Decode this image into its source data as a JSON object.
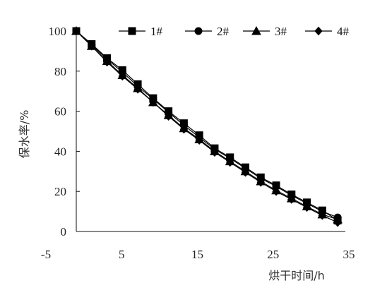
{
  "chart_data": {
    "type": "line",
    "title": "",
    "xlabel": "烘干时间/h",
    "ylabel": "保水率/%",
    "xlim": [
      -5,
      35
    ],
    "ylim": [
      0,
      100
    ],
    "x_ticks": [
      "-5",
      "5",
      "15",
      "25",
      "35"
    ],
    "y_ticks": [
      "0",
      "20",
      "40",
      "60",
      "80",
      "100"
    ],
    "grid": false,
    "legend_position": "top-right",
    "x": [
      0,
      2,
      4,
      6,
      8,
      10,
      12,
      14,
      16,
      18,
      20,
      22,
      24,
      26,
      28,
      30,
      32,
      34
    ],
    "series": [
      {
        "name": "1#",
        "marker": "square",
        "values": [
          100,
          93.5,
          86.5,
          80.5,
          73.5,
          66.5,
          60,
          54,
          48,
          41.5,
          37,
          32,
          27,
          23,
          18.5,
          14.5,
          10.5,
          5.5
        ]
      },
      {
        "name": "2#",
        "marker": "circle",
        "values": [
          100,
          93,
          86,
          79.5,
          72.5,
          66,
          59.5,
          53,
          47,
          41,
          36.5,
          31.5,
          26.5,
          22.5,
          18,
          14,
          10,
          7
        ]
      },
      {
        "name": "3#",
        "marker": "triangle",
        "values": [
          100,
          92.5,
          85,
          78,
          71.5,
          64.5,
          58,
          51.5,
          46,
          40,
          35,
          30,
          25,
          20.5,
          16.5,
          12.5,
          8.5,
          6
        ]
      },
      {
        "name": "4#",
        "marker": "diamond",
        "values": [
          100,
          92.5,
          84.5,
          77.5,
          71,
          64.5,
          57.5,
          51,
          45.5,
          39.5,
          34.5,
          29.5,
          24.5,
          20,
          16,
          12,
          8,
          4.5
        ]
      }
    ]
  },
  "colors": {
    "series": "#000000",
    "axis": "#111111",
    "ylabel_text": "#7a5a5a"
  }
}
